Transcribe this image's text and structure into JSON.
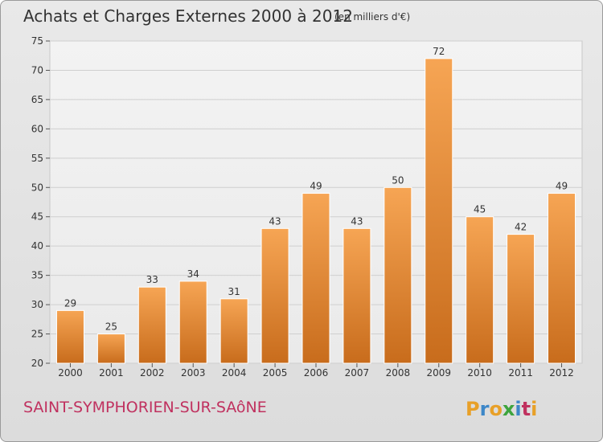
{
  "chart_data": {
    "type": "bar",
    "title": "Achats et Charges Externes 2000 à 2012",
    "subtitle": "(en milliers d'€)",
    "categories": [
      "2000",
      "2001",
      "2002",
      "2003",
      "2004",
      "2005",
      "2006",
      "2007",
      "2008",
      "2009",
      "2010",
      "2011",
      "2012"
    ],
    "values": [
      29,
      25,
      33,
      34,
      31,
      43,
      49,
      43,
      50,
      72,
      45,
      42,
      49
    ],
    "ylim": [
      20,
      75
    ],
    "yticks": [
      20,
      25,
      30,
      35,
      40,
      45,
      50,
      55,
      60,
      65,
      70,
      75
    ],
    "grid": true,
    "bar_color": "#ef8e36"
  },
  "footer": {
    "city": "SAINT-SYMPHORIEN-SUR-SAôNE",
    "logo": [
      "P",
      "r",
      "o",
      "x",
      "i",
      "t",
      "i"
    ],
    "logo_colors": [
      "#e8a028",
      "#3d87c8",
      "#e8a028",
      "#3da43d",
      "#3d87c8",
      "#c0315f",
      "#e8a028"
    ]
  }
}
